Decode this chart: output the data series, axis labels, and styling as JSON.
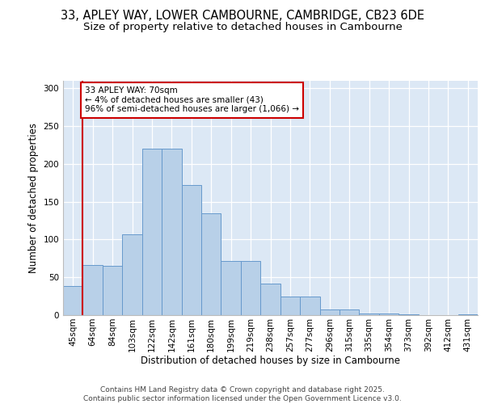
{
  "title_line1": "33, APLEY WAY, LOWER CAMBOURNE, CAMBRIDGE, CB23 6DE",
  "title_line2": "Size of property relative to detached houses in Cambourne",
  "xlabel": "Distribution of detached houses by size in Cambourne",
  "ylabel": "Number of detached properties",
  "categories": [
    "45sqm",
    "64sqm",
    "84sqm",
    "103sqm",
    "122sqm",
    "142sqm",
    "161sqm",
    "180sqm",
    "199sqm",
    "219sqm",
    "238sqm",
    "257sqm",
    "277sqm",
    "296sqm",
    "315sqm",
    "335sqm",
    "354sqm",
    "373sqm",
    "392sqm",
    "412sqm",
    "431sqm"
  ],
  "values": [
    38,
    66,
    65,
    107,
    220,
    220,
    172,
    135,
    72,
    72,
    42,
    25,
    25,
    7,
    7,
    2,
    2,
    1,
    0,
    0,
    1
  ],
  "bar_color": "#b8d0e8",
  "bar_edge_color": "#6699cc",
  "vline_x_index": 1,
  "vline_color": "#cc0000",
  "annotation_text": "33 APLEY WAY: 70sqm\n← 4% of detached houses are smaller (43)\n96% of semi-detached houses are larger (1,066) →",
  "annotation_box_color": "#cc0000",
  "ylim": [
    0,
    310
  ],
  "yticks": [
    0,
    50,
    100,
    150,
    200,
    250,
    300
  ],
  "background_color": "#dce8f5",
  "footer_line1": "Contains HM Land Registry data © Crown copyright and database right 2025.",
  "footer_line2": "Contains public sector information licensed under the Open Government Licence v3.0.",
  "title_fontsize": 10.5,
  "subtitle_fontsize": 9.5,
  "axis_label_fontsize": 8.5,
  "tick_fontsize": 7.5,
  "annotation_fontsize": 7.5,
  "footer_fontsize": 6.5
}
